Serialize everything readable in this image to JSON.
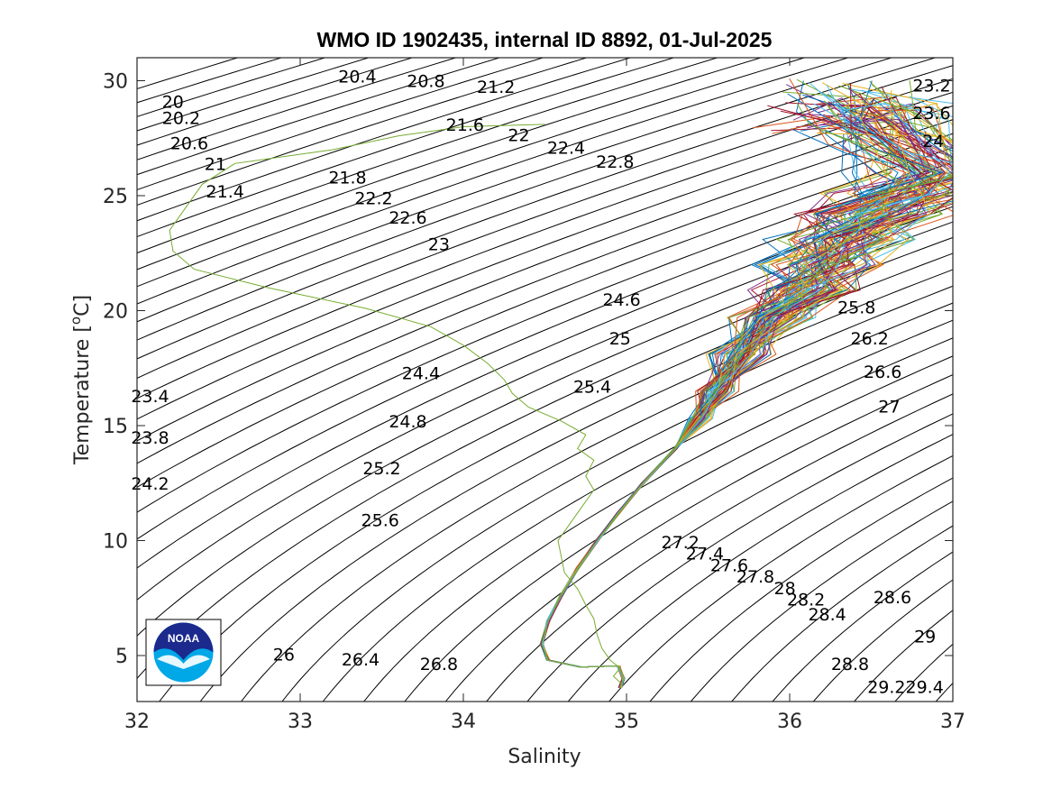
{
  "chart_data": {
    "type": "line",
    "title": "WMO ID 1902435, internal ID 8892, 01-Jul-2025",
    "xlabel": "Salinity",
    "ylabel_text": "Temperature [",
    "ylabel_sup": "o",
    "ylabel_unit": "C]",
    "xlim": [
      32,
      37
    ],
    "ylim": [
      3,
      31
    ],
    "xticks": [
      32,
      33,
      34,
      35,
      36,
      37
    ],
    "xtick_labels": [
      "32",
      "33",
      "34",
      "35",
      "36",
      "37"
    ],
    "yticks": [
      5,
      10,
      15,
      20,
      25,
      30
    ],
    "ytick_labels": [
      "5",
      "10",
      "15",
      "20",
      "25",
      "30"
    ],
    "grid": false,
    "isopycnals": {
      "sigma_min": 19.6,
      "sigma_max": 29.6,
      "step": 0.2,
      "labels": [
        {
          "text": "20.4",
          "s": 33.35,
          "t": 30.2
        },
        {
          "text": "20.8",
          "s": 33.77,
          "t": 30.0
        },
        {
          "text": "21.2",
          "s": 34.2,
          "t": 29.75
        },
        {
          "text": "20",
          "s": 32.22,
          "t": 29.1
        },
        {
          "text": "20.2",
          "s": 32.27,
          "t": 28.4
        },
        {
          "text": "21.6",
          "s": 34.01,
          "t": 28.1
        },
        {
          "text": "22",
          "s": 34.34,
          "t": 27.65
        },
        {
          "text": "20.6",
          "s": 32.32,
          "t": 27.3
        },
        {
          "text": "22.4",
          "s": 34.63,
          "t": 27.1
        },
        {
          "text": "21",
          "s": 32.48,
          "t": 26.4
        },
        {
          "text": "22.8",
          "s": 34.93,
          "t": 26.5
        },
        {
          "text": "21.8",
          "s": 33.29,
          "t": 25.8
        },
        {
          "text": "21.4",
          "s": 32.54,
          "t": 25.2
        },
        {
          "text": "22.2",
          "s": 33.45,
          "t": 24.9
        },
        {
          "text": "22.6",
          "s": 33.66,
          "t": 24.05
        },
        {
          "text": "23",
          "s": 33.85,
          "t": 22.9
        },
        {
          "text": "23.2",
          "s": 36.87,
          "t": 29.8
        },
        {
          "text": "23.6",
          "s": 36.87,
          "t": 28.6
        },
        {
          "text": "24",
          "s": 36.88,
          "t": 27.4
        },
        {
          "text": "24.6",
          "s": 34.97,
          "t": 20.5
        },
        {
          "text": "25.8",
          "s": 36.41,
          "t": 20.15
        },
        {
          "text": "25",
          "s": 34.96,
          "t": 18.8
        },
        {
          "text": "26.2",
          "s": 36.49,
          "t": 18.8
        },
        {
          "text": "24.4",
          "s": 33.74,
          "t": 17.3
        },
        {
          "text": "26.6",
          "s": 36.57,
          "t": 17.35
        },
        {
          "text": "25.4",
          "s": 34.79,
          "t": 16.7
        },
        {
          "text": "23.4",
          "s": 32.08,
          "t": 16.3
        },
        {
          "text": "27",
          "s": 36.61,
          "t": 15.85
        },
        {
          "text": "24.8",
          "s": 33.66,
          "t": 15.2
        },
        {
          "text": "23.8",
          "s": 32.08,
          "t": 14.5
        },
        {
          "text": "25.2",
          "s": 33.5,
          "t": 13.15
        },
        {
          "text": "24.2",
          "s": 32.08,
          "t": 12.5
        },
        {
          "text": "25.6",
          "s": 33.49,
          "t": 10.9
        },
        {
          "text": "27.2",
          "s": 35.33,
          "t": 9.95
        },
        {
          "text": "27.4",
          "s": 35.48,
          "t": 9.45
        },
        {
          "text": "27.6",
          "s": 35.63,
          "t": 8.95
        },
        {
          "text": "27.8",
          "s": 35.79,
          "t": 8.45
        },
        {
          "text": "28",
          "s": 35.97,
          "t": 7.95
        },
        {
          "text": "28.2",
          "s": 36.1,
          "t": 7.45
        },
        {
          "text": "28.6",
          "s": 36.63,
          "t": 7.55
        },
        {
          "text": "28.4",
          "s": 36.23,
          "t": 6.8
        },
        {
          "text": "29",
          "s": 36.83,
          "t": 5.85
        },
        {
          "text": "26",
          "s": 32.9,
          "t": 5.05
        },
        {
          "text": "26.4",
          "s": 33.37,
          "t": 4.85
        },
        {
          "text": "26.8",
          "s": 33.85,
          "t": 4.65
        },
        {
          "text": "28.8",
          "s": 36.37,
          "t": 4.65
        },
        {
          "text": "29.229.4",
          "s": 36.71,
          "t": 3.65
        }
      ]
    },
    "series": [
      {
        "color": "#77ac30",
        "points": [
          [
            34.5,
            28.1
          ],
          [
            34.0,
            28.0
          ],
          [
            33.6,
            27.6
          ],
          [
            33.2,
            27.0
          ],
          [
            32.9,
            26.7
          ],
          [
            32.6,
            26.4
          ],
          [
            32.4,
            25.5
          ],
          [
            32.3,
            24.5
          ],
          [
            32.2,
            23.5
          ],
          [
            32.22,
            22.6
          ],
          [
            32.35,
            21.8
          ],
          [
            32.8,
            21.0
          ],
          [
            33.4,
            20.1
          ],
          [
            33.8,
            19.3
          ],
          [
            34.0,
            18.5
          ],
          [
            34.15,
            17.7
          ],
          [
            34.25,
            17.0
          ],
          [
            34.3,
            16.4
          ],
          [
            34.4,
            15.8
          ],
          [
            34.6,
            15.2
          ],
          [
            34.75,
            14.6
          ],
          [
            34.7,
            14.0
          ],
          [
            34.8,
            13.5
          ],
          [
            34.75,
            12.8
          ],
          [
            34.8,
            12.2
          ],
          [
            34.72,
            11.4
          ],
          [
            34.65,
            10.7
          ],
          [
            34.58,
            10.0
          ],
          [
            34.6,
            9.3
          ],
          [
            34.62,
            8.6
          ],
          [
            34.7,
            7.9
          ],
          [
            34.75,
            7.2
          ],
          [
            34.8,
            6.6
          ],
          [
            34.82,
            5.9
          ],
          [
            34.85,
            5.3
          ],
          [
            34.9,
            4.8
          ],
          [
            34.96,
            4.45
          ],
          [
            34.92,
            4.1
          ],
          [
            34.98,
            3.7
          ]
        ]
      },
      {
        "color": "#77ac30",
        "points": [
          [
            36.3,
            27.6
          ],
          [
            36.6,
            26.8
          ],
          [
            36.9,
            26.0
          ],
          [
            36.7,
            25.1
          ],
          [
            36.5,
            24.2
          ],
          [
            36.35,
            23.1
          ],
          [
            36.2,
            22.0
          ],
          [
            36.1,
            20.9
          ],
          [
            35.9,
            19.7
          ],
          [
            35.7,
            18.1
          ],
          [
            35.55,
            16.5
          ],
          [
            35.45,
            15.3
          ],
          [
            35.3,
            14.0
          ],
          [
            35.1,
            12.5
          ],
          [
            34.95,
            11.2
          ],
          [
            34.82,
            10.0
          ],
          [
            34.7,
            8.8
          ],
          [
            34.6,
            7.6
          ],
          [
            34.52,
            6.5
          ],
          [
            34.48,
            5.5
          ],
          [
            34.52,
            4.8
          ],
          [
            34.72,
            4.5
          ],
          [
            34.95,
            4.55
          ],
          [
            34.98,
            4.0
          ],
          [
            34.96,
            3.6
          ]
        ]
      }
    ]
  },
  "logo": {
    "text": "NOAA"
  }
}
